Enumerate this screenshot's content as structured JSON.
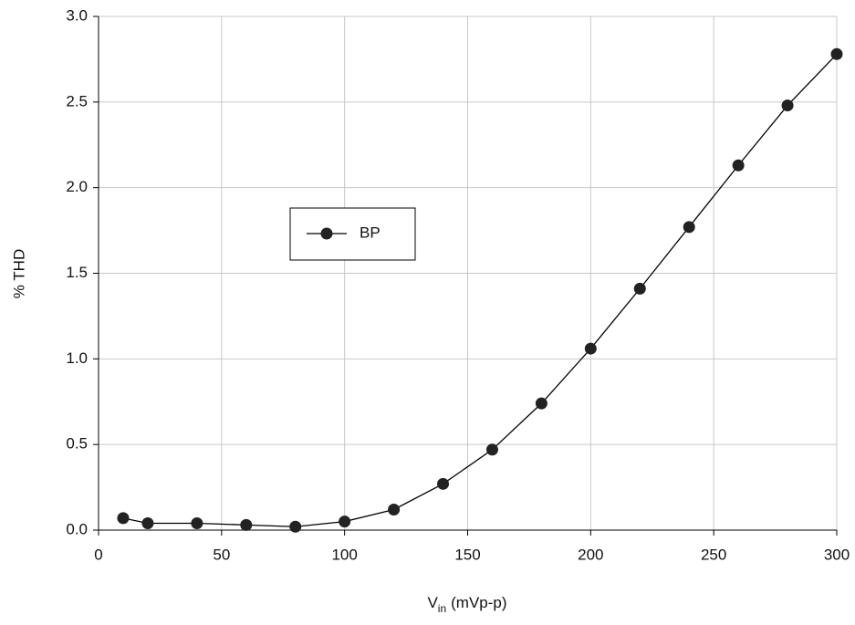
{
  "chart_data": {
    "type": "line",
    "x_label": {
      "main": "V",
      "subscript": "in",
      "suffix": "(mVp-p)"
    },
    "y_label": "% THD",
    "x": [
      10,
      20,
      40,
      60,
      80,
      100,
      120,
      140,
      160,
      180,
      200,
      220,
      240,
      260,
      280,
      300
    ],
    "series": [
      {
        "name": "BP",
        "color": "#222222",
        "values": [
          0.07,
          0.04,
          0.04,
          0.03,
          0.02,
          0.05,
          0.12,
          0.27,
          0.47,
          0.74,
          1.06,
          1.41,
          1.77,
          2.13,
          2.48,
          2.78
        ]
      }
    ],
    "xlim": [
      0,
      300
    ],
    "xticks": [
      0,
      50,
      100,
      150,
      200,
      250,
      300
    ],
    "ylim": [
      0,
      3
    ],
    "yticks": [
      {
        "value": 0,
        "label": "0.0"
      },
      0.5,
      {
        "value": 1,
        "label": "1.0"
      },
      1.5,
      {
        "value": 2,
        "label": "2.0"
      },
      2.5,
      {
        "value": 3,
        "label": "3.0"
      }
    ],
    "grid": true
  }
}
